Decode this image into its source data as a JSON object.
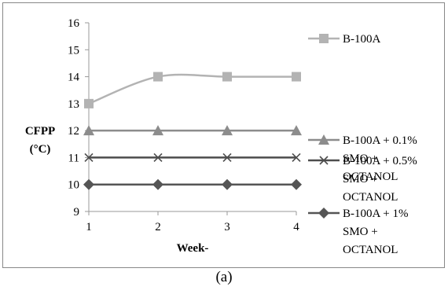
{
  "chart_data": {
    "type": "line",
    "xlabel": "Week-",
    "ylabel_lines": [
      "CFPP",
      "(°C)"
    ],
    "x": [
      1,
      2,
      3,
      4
    ],
    "xlim": [
      1,
      4
    ],
    "ylim": [
      9,
      16
    ],
    "yticks": [
      9,
      10,
      11,
      12,
      13,
      14,
      15,
      16
    ],
    "grid": false,
    "legend_position": "right",
    "series": [
      {
        "name_lines": [
          "B-100A"
        ],
        "values": [
          13,
          14,
          14,
          14
        ],
        "color": "#b3b3b3",
        "marker": "square",
        "smooth": true
      },
      {
        "name_lines": [
          "B-100A + 0.1%",
          "SMO +",
          "OCTANOL"
        ],
        "values": [
          12,
          12,
          12,
          12
        ],
        "color": "#8c8c8c",
        "marker": "triangle",
        "smooth": false
      },
      {
        "name_lines": [
          "B-100A + 0.5%",
          "SMO +",
          "OCTANOL"
        ],
        "values": [
          11,
          11,
          11,
          11
        ],
        "color": "#4d4d4d",
        "marker": "x",
        "smooth": false
      },
      {
        "name_lines": [
          "B-100A + 1%",
          "SMO +",
          "OCTANOL"
        ],
        "values": [
          10,
          10,
          10,
          10
        ],
        "color": "#555555",
        "marker": "diamond",
        "smooth": false
      }
    ]
  },
  "caption": "(a)"
}
